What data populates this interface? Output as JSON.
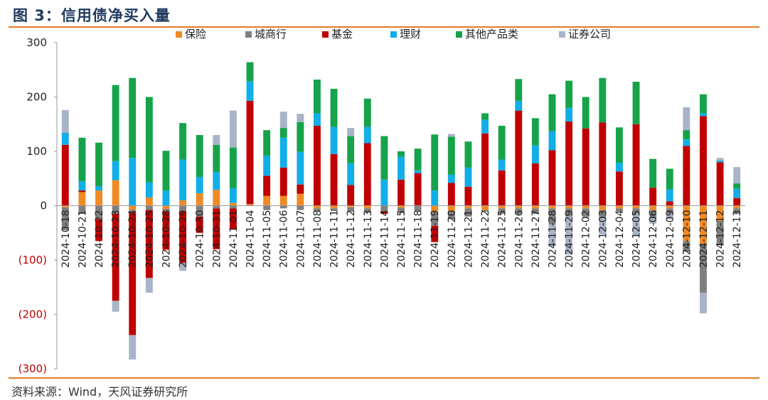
{
  "title": "图 3：信用债净买入量",
  "source": "资料来源：Wind，天风证券研究所",
  "colors": {
    "accent_line": "#e07b26",
    "negative_tick": "#c00000",
    "series": [
      "#f08a24",
      "#7f7f7f",
      "#c00000",
      "#11aee8",
      "#16a34a",
      "#a8b4c8"
    ]
  },
  "chart_data": {
    "type": "bar",
    "stacked": true,
    "title": "",
    "xlabel": "",
    "ylabel": "",
    "ylim": [
      -300,
      300
    ],
    "yticks": [
      {
        "value": 300,
        "label": "300"
      },
      {
        "value": 200,
        "label": "200"
      },
      {
        "value": 100,
        "label": "100"
      },
      {
        "value": 0,
        "label": "0"
      },
      {
        "value": -100,
        "label": "(100)"
      },
      {
        "value": -200,
        "label": "(200)"
      },
      {
        "value": -300,
        "label": "(300)"
      }
    ],
    "grid": false,
    "legend_position": "top",
    "categories": [
      "2024-10-18",
      "2024-10-21",
      "2024-10-22",
      "2024-10-23",
      "2024-10-24",
      "2024-10-25",
      "2024-10-28",
      "2024-10-29",
      "2024-10-30",
      "2024-10-31",
      "2024-11-01",
      "2024-11-04",
      "2024-11-05",
      "2024-11-06",
      "2024-11-07",
      "2024-11-08",
      "2024-11-11",
      "2024-11-12",
      "2024-11-13",
      "2024-11-14",
      "2024-11-15",
      "2024-11-18",
      "2024-11-19",
      "2024-11-20",
      "2024-11-21",
      "2024-11-22",
      "2024-11-25",
      "2024-11-26",
      "2024-11-27",
      "2024-11-28",
      "2024-11-29",
      "2024-12-02",
      "2024-12-03",
      "2024-12-04",
      "2024-12-05",
      "2024-12-06",
      "2024-12-09",
      "2024-12-10",
      "2024-12-11",
      "2024-12-12",
      "2024-12-13"
    ],
    "series": [
      {
        "name": "保险",
        "values": [
          -3,
          25,
          28,
          47,
          -8,
          15,
          -6,
          10,
          23,
          29,
          5,
          3,
          18,
          18,
          22,
          -5,
          -5,
          -3,
          -5,
          0,
          -4,
          0,
          -12,
          -10,
          -5,
          -8,
          -5,
          -5,
          -5,
          -5,
          -5,
          -5,
          -8,
          -5,
          -5,
          -8,
          -5,
          -65,
          -70,
          -28,
          -5
        ]
      },
      {
        "name": "城商行",
        "values": [
          -42,
          -15,
          -25,
          -15,
          -5,
          -8,
          -5,
          -10,
          -20,
          -5,
          -5,
          0,
          -8,
          -5,
          -8,
          -5,
          -5,
          -8,
          -8,
          -10,
          -10,
          -10,
          -25,
          -15,
          -15,
          -3,
          -10,
          -10,
          -10,
          -30,
          -15,
          -15,
          -15,
          -5,
          -10,
          -15,
          -10,
          -20,
          -90,
          -45,
          -10
        ]
      },
      {
        "name": "基金",
        "values": [
          112,
          3,
          -40,
          -160,
          -225,
          -125,
          -70,
          -95,
          -30,
          -75,
          -38,
          190,
          37,
          52,
          17,
          147,
          95,
          38,
          115,
          -5,
          48,
          60,
          -30,
          42,
          35,
          133,
          65,
          175,
          78,
          102,
          155,
          142,
          153,
          63,
          150,
          33,
          8,
          110,
          165,
          80,
          14
        ]
      },
      {
        "name": "理财",
        "values": [
          22,
          17,
          8,
          35,
          88,
          28,
          28,
          75,
          30,
          33,
          27,
          36,
          37,
          55,
          60,
          23,
          50,
          40,
          30,
          48,
          42,
          5,
          28,
          15,
          35,
          25,
          20,
          18,
          33,
          35,
          25,
          0,
          0,
          16,
          0,
          0,
          22,
          12,
          5,
          3,
          17
        ]
      },
      {
        "name": "其他产品类",
        "values": [
          0,
          80,
          80,
          140,
          147,
          157,
          73,
          67,
          77,
          50,
          75,
          35,
          47,
          18,
          55,
          62,
          70,
          50,
          52,
          80,
          10,
          40,
          103,
          70,
          48,
          12,
          62,
          40,
          50,
          68,
          50,
          58,
          82,
          65,
          78,
          53,
          38,
          17,
          35,
          0,
          10
        ]
      },
      {
        "name": "证券公司",
        "values": [
          42,
          0,
          0,
          -20,
          -45,
          -27,
          0,
          -15,
          0,
          18,
          68,
          0,
          0,
          30,
          15,
          0,
          0,
          15,
          0,
          0,
          0,
          0,
          0,
          5,
          0,
          0,
          0,
          0,
          0,
          -40,
          -70,
          -3,
          -30,
          0,
          -40,
          -10,
          -10,
          42,
          -38,
          5,
          30
        ]
      }
    ]
  }
}
